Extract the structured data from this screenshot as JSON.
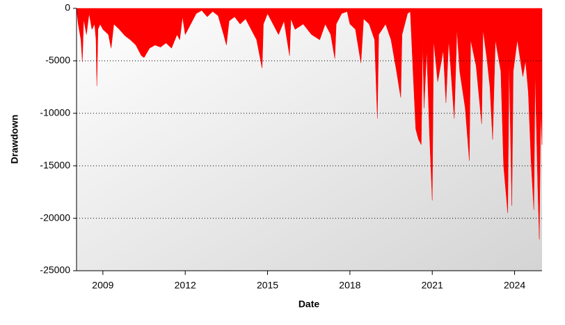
{
  "chart_data": {
    "type": "area",
    "xlabel": "Date",
    "ylabel": "Drawdown",
    "x": [
      2008.04,
      2008.1,
      2008.2,
      2008.25,
      2008.3,
      2008.4,
      2008.5,
      2008.6,
      2008.7,
      2008.75,
      2008.78,
      2008.82,
      2008.9,
      2009.0,
      2009.2,
      2009.3,
      2009.4,
      2009.6,
      2009.8,
      2010.0,
      2010.2,
      2010.4,
      2010.5,
      2010.7,
      2010.9,
      2011.1,
      2011.3,
      2011.5,
      2011.7,
      2011.8,
      2011.9,
      2012.0,
      2012.2,
      2012.4,
      2012.6,
      2012.8,
      2013.0,
      2013.2,
      2013.4,
      2013.5,
      2013.6,
      2013.8,
      2014.0,
      2014.2,
      2014.4,
      2014.6,
      2014.8,
      2014.85,
      2015.0,
      2015.2,
      2015.4,
      2015.6,
      2015.8,
      2015.85,
      2016.0,
      2016.3,
      2016.6,
      2016.9,
      2017.1,
      2017.3,
      2017.45,
      2017.5,
      2017.7,
      2017.9,
      2018.0,
      2018.2,
      2018.4,
      2018.5,
      2018.7,
      2018.9,
      2019.0,
      2019.05,
      2019.3,
      2019.5,
      2019.7,
      2019.85,
      2019.9,
      2020.1,
      2020.2,
      2020.3,
      2020.4,
      2020.5,
      2020.6,
      2020.65,
      2020.7,
      2020.8,
      2020.9,
      2021.0,
      2021.05,
      2021.2,
      2021.4,
      2021.5,
      2021.6,
      2021.8,
      2021.9,
      2022.0,
      2022.2,
      2022.35,
      2022.4,
      2022.6,
      2022.8,
      2022.85,
      2023.0,
      2023.1,
      2023.2,
      2023.3,
      2023.5,
      2023.6,
      2023.75,
      2023.8,
      2023.9,
      2023.95,
      2024.1,
      2024.3,
      2024.4,
      2024.5,
      2024.6,
      2024.7,
      2024.75,
      2024.85,
      2024.9,
      2024.95,
      2025.0
    ],
    "values": [
      0,
      -1500,
      -3000,
      -5100,
      -1000,
      -2500,
      -500,
      -2000,
      -1500,
      -3000,
      -7400,
      -2000,
      -1500,
      -2000,
      -2500,
      -3800,
      -1500,
      -2000,
      -2600,
      -3000,
      -3500,
      -4500,
      -4700,
      -3800,
      -3500,
      -3700,
      -3300,
      -3800,
      -2500,
      -3000,
      -800,
      -2500,
      -1500,
      -500,
      -200,
      -800,
      -300,
      -700,
      -2500,
      -3500,
      -1200,
      -800,
      -1500,
      -1000,
      -2000,
      -3000,
      -5700,
      -1500,
      -500,
      -1500,
      -2500,
      -1200,
      -4500,
      -1000,
      -2000,
      -1500,
      -2500,
      -3000,
      -1500,
      -2500,
      -4800,
      -1500,
      -500,
      -300,
      -1500,
      -2000,
      -5200,
      -1000,
      -1500,
      -3000,
      -10500,
      -2500,
      -1500,
      -3000,
      -6000,
      -8500,
      -2500,
      -500,
      -300,
      -6000,
      -11500,
      -12500,
      -13000,
      -3000,
      -9500,
      -4000,
      -12000,
      -18300,
      -3000,
      -7000,
      -4000,
      -9000,
      -3000,
      -10500,
      -2000,
      -6000,
      -9500,
      -14500,
      -3000,
      -5500,
      -11000,
      -2000,
      -5000,
      -7500,
      -12500,
      -3000,
      -6000,
      -15000,
      -19500,
      -5000,
      -18800,
      -6000,
      -3000,
      -6500,
      -5000,
      -8000,
      -14500,
      -19200,
      -6000,
      -17500,
      -22000,
      -10000,
      -13000
    ],
    "color": "#ff0000",
    "xlim": [
      2008.04,
      2025.0
    ],
    "xticks": [
      2009,
      2012,
      2015,
      2018,
      2021,
      2024
    ],
    "ylim": [
      -25000,
      0
    ],
    "yticks": [
      0,
      -5000,
      -10000,
      -15000,
      -20000,
      -25000
    ],
    "grid": true
  }
}
